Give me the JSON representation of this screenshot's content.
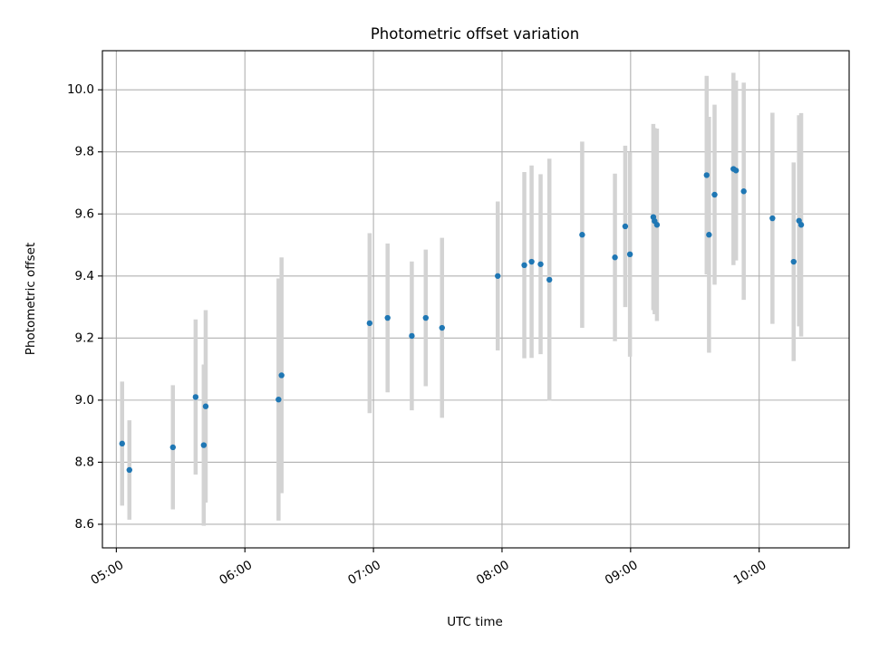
{
  "chart_data": {
    "type": "scatter",
    "title": "Photometric offset variation",
    "xlabel": "UTC time",
    "ylabel": "Photometric offset",
    "x_unit": "minutes since 00:00 UTC",
    "xlim": [
      293.5,
      642.0
    ],
    "ylim": [
      8.524,
      10.126
    ],
    "grid": true,
    "x_ticks": [
      {
        "value": 300,
        "label": "05:00"
      },
      {
        "value": 360,
        "label": "06:00"
      },
      {
        "value": 420,
        "label": "07:00"
      },
      {
        "value": 480,
        "label": "08:00"
      },
      {
        "value": 540,
        "label": "09:00"
      },
      {
        "value": 600,
        "label": "10:00"
      }
    ],
    "y_ticks": [
      {
        "value": 8.6,
        "label": "8.6"
      },
      {
        "value": 8.8,
        "label": "8.8"
      },
      {
        "value": 9.0,
        "label": "9.0"
      },
      {
        "value": 9.2,
        "label": "9.2"
      },
      {
        "value": 9.4,
        "label": "9.4"
      },
      {
        "value": 9.6,
        "label": "9.6"
      },
      {
        "value": 9.8,
        "label": "9.8"
      },
      {
        "value": 10.0,
        "label": "10.0"
      }
    ],
    "colors": {
      "point": "#1f77b4",
      "errorbar": "#d3d3d3",
      "grid": "#b0b0b0",
      "axis": "#000000"
    },
    "series": [
      {
        "name": "offset",
        "points": [
          {
            "x": 302.7,
            "y": 8.86,
            "err": 0.2
          },
          {
            "x": 306.1,
            "y": 8.775,
            "err": 0.16
          },
          {
            "x": 326.4,
            "y": 8.848,
            "err": 0.2
          },
          {
            "x": 337.0,
            "y": 9.01,
            "err": 0.25
          },
          {
            "x": 340.8,
            "y": 8.855,
            "err": 0.26
          },
          {
            "x": 341.7,
            "y": 8.98,
            "err": 0.31
          },
          {
            "x": 375.7,
            "y": 9.002,
            "err": 0.39
          },
          {
            "x": 377.1,
            "y": 9.08,
            "err": 0.38
          },
          {
            "x": 418.2,
            "y": 9.248,
            "err": 0.29
          },
          {
            "x": 426.6,
            "y": 9.265,
            "err": 0.24
          },
          {
            "x": 437.9,
            "y": 9.207,
            "err": 0.24
          },
          {
            "x": 444.4,
            "y": 9.265,
            "err": 0.22
          },
          {
            "x": 452.0,
            "y": 9.233,
            "err": 0.29
          },
          {
            "x": 478.0,
            "y": 9.4,
            "err": 0.24
          },
          {
            "x": 490.4,
            "y": 9.435,
            "err": 0.3
          },
          {
            "x": 493.8,
            "y": 9.446,
            "err": 0.31
          },
          {
            "x": 498.0,
            "y": 9.438,
            "err": 0.29
          },
          {
            "x": 502.1,
            "y": 9.388,
            "err": 0.39
          },
          {
            "x": 517.4,
            "y": 9.533,
            "err": 0.3
          },
          {
            "x": 532.7,
            "y": 9.46,
            "err": 0.27
          },
          {
            "x": 537.5,
            "y": 9.56,
            "err": 0.26
          },
          {
            "x": 539.7,
            "y": 9.47,
            "err": 0.33
          },
          {
            "x": 550.6,
            "y": 9.59,
            "err": 0.3
          },
          {
            "x": 551.2,
            "y": 9.577,
            "err": 0.3
          },
          {
            "x": 552.3,
            "y": 9.565,
            "err": 0.31
          },
          {
            "x": 575.5,
            "y": 9.725,
            "err": 0.32
          },
          {
            "x": 576.6,
            "y": 9.533,
            "err": 0.38
          },
          {
            "x": 579.2,
            "y": 9.662,
            "err": 0.29
          },
          {
            "x": 588.0,
            "y": 9.745,
            "err": 0.31
          },
          {
            "x": 589.2,
            "y": 9.74,
            "err": 0.29
          },
          {
            "x": 592.8,
            "y": 9.673,
            "err": 0.35
          },
          {
            "x": 606.2,
            "y": 9.586,
            "err": 0.34
          },
          {
            "x": 616.1,
            "y": 9.446,
            "err": 0.32
          },
          {
            "x": 618.6,
            "y": 9.578,
            "err": 0.34
          },
          {
            "x": 619.6,
            "y": 9.565,
            "err": 0.36
          }
        ]
      }
    ]
  }
}
